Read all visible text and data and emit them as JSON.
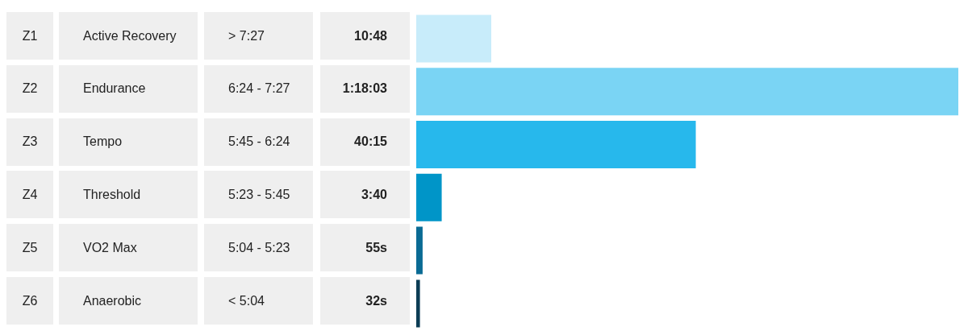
{
  "chart_data": {
    "type": "bar",
    "orientation": "horizontal",
    "categories": [
      "Z1",
      "Z2",
      "Z3",
      "Z4",
      "Z5",
      "Z6"
    ],
    "values": [
      648,
      4683,
      2415,
      220,
      55,
      32
    ],
    "value_labels": [
      "10:48",
      "1:18:03",
      "40:15",
      "3:40",
      "55s",
      "32s"
    ],
    "colors": [
      "#c8ecfa",
      "#7ad4f4",
      "#27b8ec",
      "#0095c8",
      "#0a6b94",
      "#0c3d55"
    ],
    "annotations": [
      "Active Recovery",
      "> 7:27",
      "Endurance",
      "6:24 - 7:27",
      "Tempo",
      "5:45 - 6:24",
      "Threshold",
      "5:23 - 5:45",
      "VO2 Max",
      "5:04 - 5:23",
      "Anaerobic",
      "< 5:04"
    ]
  }
}
